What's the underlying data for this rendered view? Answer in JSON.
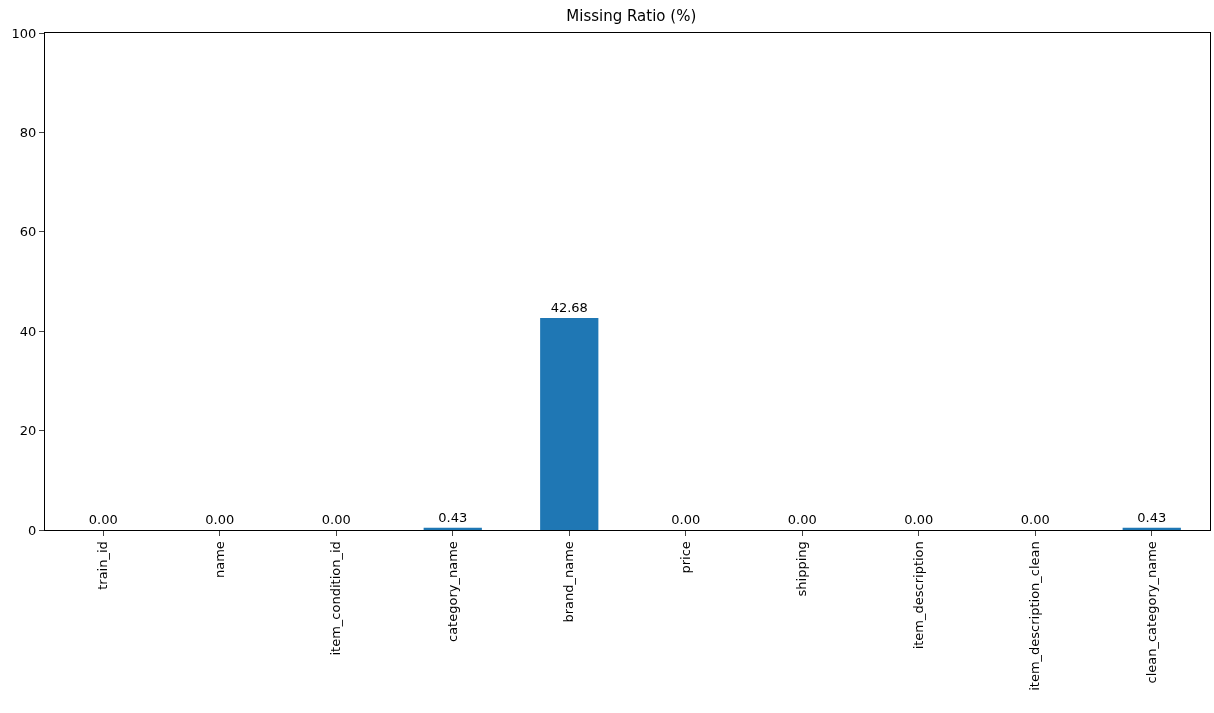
{
  "chart_data": {
    "type": "bar",
    "title": "Missing Ratio (%)",
    "categories": [
      "train_id",
      "name",
      "item_condition_id",
      "category_name",
      "brand_name",
      "price",
      "shipping",
      "item_description",
      "item_description_clean",
      "clean_category_name"
    ],
    "values": [
      0,
      0,
      0,
      0.43,
      42.68,
      0,
      0,
      0,
      0,
      0.43
    ],
    "value_labels": [
      "0.00",
      "0.00",
      "0.00",
      "0.43",
      "42.68",
      "0.00",
      "0.00",
      "0.00",
      "0.00",
      "0.43"
    ],
    "color": "#1f77b4",
    "ylim": [
      0,
      100
    ],
    "yticks": [
      0,
      20,
      40,
      60,
      80,
      100
    ],
    "legend": false
  }
}
